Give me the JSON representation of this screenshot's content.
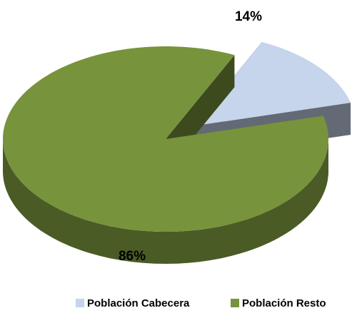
{
  "chart_data": {
    "type": "pie",
    "categories": [
      "Población Cabecera",
      "Población Resto"
    ],
    "values": [
      14,
      86
    ],
    "value_labels": [
      "14%",
      "86%"
    ],
    "colors": [
      "#c6d4ec",
      "#77933c"
    ],
    "legend": "bottom"
  }
}
